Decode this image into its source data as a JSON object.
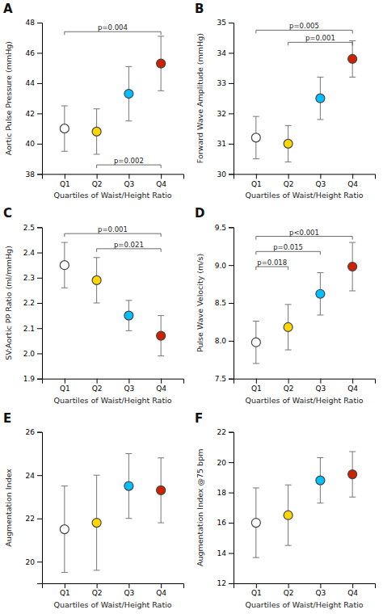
{
  "chart_data": [
    {
      "type": "errorbar",
      "title": "A",
      "ylabel": "Aortic Pulse Pressure (mmHg)",
      "xlabel": "Quartiles of Waist/Height Ratio",
      "categories": [
        "Q1",
        "Q2",
        "Q3",
        "Q4"
      ],
      "values": [
        41.0,
        40.8,
        43.3,
        45.3
      ],
      "errors": [
        1.5,
        1.5,
        1.8,
        1.8
      ],
      "colors": [
        "white",
        "#FFD700",
        "#00BFFF",
        "#CC2200"
      ],
      "ylim": [
        38,
        48
      ],
      "yticks": [
        38,
        40,
        42,
        44,
        46,
        48
      ],
      "annotations": [
        {
          "from": "Q1",
          "to": "Q4",
          "y": 47.4,
          "text": "p=0.004"
        },
        {
          "from": "Q2",
          "to": "Q4",
          "y": 38.6,
          "text": "p=0.002"
        }
      ]
    },
    {
      "type": "errorbar",
      "title": "B",
      "ylabel": "Forward Wave Amplitude (mmHg)",
      "xlabel": "Quartiles of Waist/Height Ratio",
      "categories": [
        "Q1",
        "Q2",
        "Q3",
        "Q4"
      ],
      "values": [
        31.2,
        31.0,
        32.5,
        33.8
      ],
      "errors": [
        0.7,
        0.6,
        0.7,
        0.6
      ],
      "colors": [
        "white",
        "#FFD700",
        "#00BFFF",
        "#CC2200"
      ],
      "ylim": [
        30,
        35
      ],
      "yticks": [
        30,
        31,
        32,
        33,
        34,
        35
      ],
      "annotations": [
        {
          "from": "Q1",
          "to": "Q4",
          "y": 34.75,
          "text": "p=0.005"
        },
        {
          "from": "Q2",
          "to": "Q4",
          "y": 34.35,
          "text": "p=0.001"
        }
      ]
    },
    {
      "type": "errorbar",
      "title": "C",
      "ylabel": "SV:Aortic PP Ratio (ml/mmHg)",
      "xlabel": "Quartiles of Waist/Height Ratio",
      "categories": [
        "Q1",
        "Q2",
        "Q3",
        "Q4"
      ],
      "values": [
        2.35,
        2.29,
        2.15,
        2.07
      ],
      "errors": [
        0.09,
        0.09,
        0.06,
        0.08
      ],
      "colors": [
        "white",
        "#FFD700",
        "#00BFFF",
        "#CC2200"
      ],
      "ylim": [
        1.9,
        2.5
      ],
      "yticks": [
        1.9,
        {
          "value": 2.0,
          "label": "2.0"
        },
        2.1,
        2.2,
        2.3,
        2.4,
        2.5
      ],
      "annotations": [
        {
          "from": "Q1",
          "to": "Q4",
          "y": 2.475,
          "text": "p=0.001"
        },
        {
          "from": "Q2",
          "to": "Q4",
          "y": 2.415,
          "text": "p=0.021"
        }
      ]
    },
    {
      "type": "errorbar",
      "title": "D",
      "ylabel": "Pulse Wave Velocity (m/s)",
      "xlabel": "Quartiles of Waist/Height Ratio",
      "categories": [
        "Q1",
        "Q2",
        "Q3",
        "Q4"
      ],
      "values": [
        7.98,
        8.18,
        8.62,
        8.98
      ],
      "errors": [
        0.28,
        0.3,
        0.28,
        0.32
      ],
      "colors": [
        "white",
        "#FFD700",
        "#00BFFF",
        "#CC2200"
      ],
      "ylim": [
        7.5,
        9.5
      ],
      "yticks": [
        7.5,
        {
          "value": 8.0,
          "label": "8.0"
        },
        8.5,
        {
          "value": 9.0,
          "label": "9.0"
        },
        9.5
      ],
      "annotations": [
        {
          "from": "Q1",
          "to": "Q4",
          "y": 9.38,
          "text": "p<0.001"
        },
        {
          "from": "Q1",
          "to": "Q3",
          "y": 9.18,
          "text": "p=0.015"
        },
        {
          "from": "Q1",
          "to": "Q2",
          "y": 8.98,
          "text": "p=0.018"
        }
      ]
    },
    {
      "type": "errorbar",
      "title": "E",
      "ylabel": "Augmentation Index",
      "xlabel": "Quartiles of Waist/Height Ratio",
      "categories": [
        "Q1",
        "Q2",
        "Q3",
        "Q4"
      ],
      "values": [
        21.5,
        21.8,
        23.5,
        23.3
      ],
      "errors": [
        2.0,
        2.2,
        1.5,
        1.5
      ],
      "colors": [
        "white",
        "#FFD700",
        "#00BFFF",
        "#CC2200"
      ],
      "ylim": [
        19,
        26
      ],
      "yticks": [
        20,
        22,
        24,
        26
      ]
    },
    {
      "type": "errorbar",
      "title": "F",
      "ylabel": "Augmentation Index @75 bpm",
      "xlabel": "Quartiles of Waist/Height Ratio",
      "categories": [
        "Q1",
        "Q2",
        "Q3",
        "Q4"
      ],
      "values": [
        16.0,
        16.5,
        18.8,
        19.2
      ],
      "errors": [
        2.3,
        2.0,
        1.5,
        1.5
      ],
      "colors": [
        "white",
        "#FFD700",
        "#00BFFF",
        "#CC2200"
      ],
      "ylim": [
        12,
        22
      ],
      "yticks": [
        12,
        14,
        16,
        18,
        20,
        22
      ]
    }
  ]
}
